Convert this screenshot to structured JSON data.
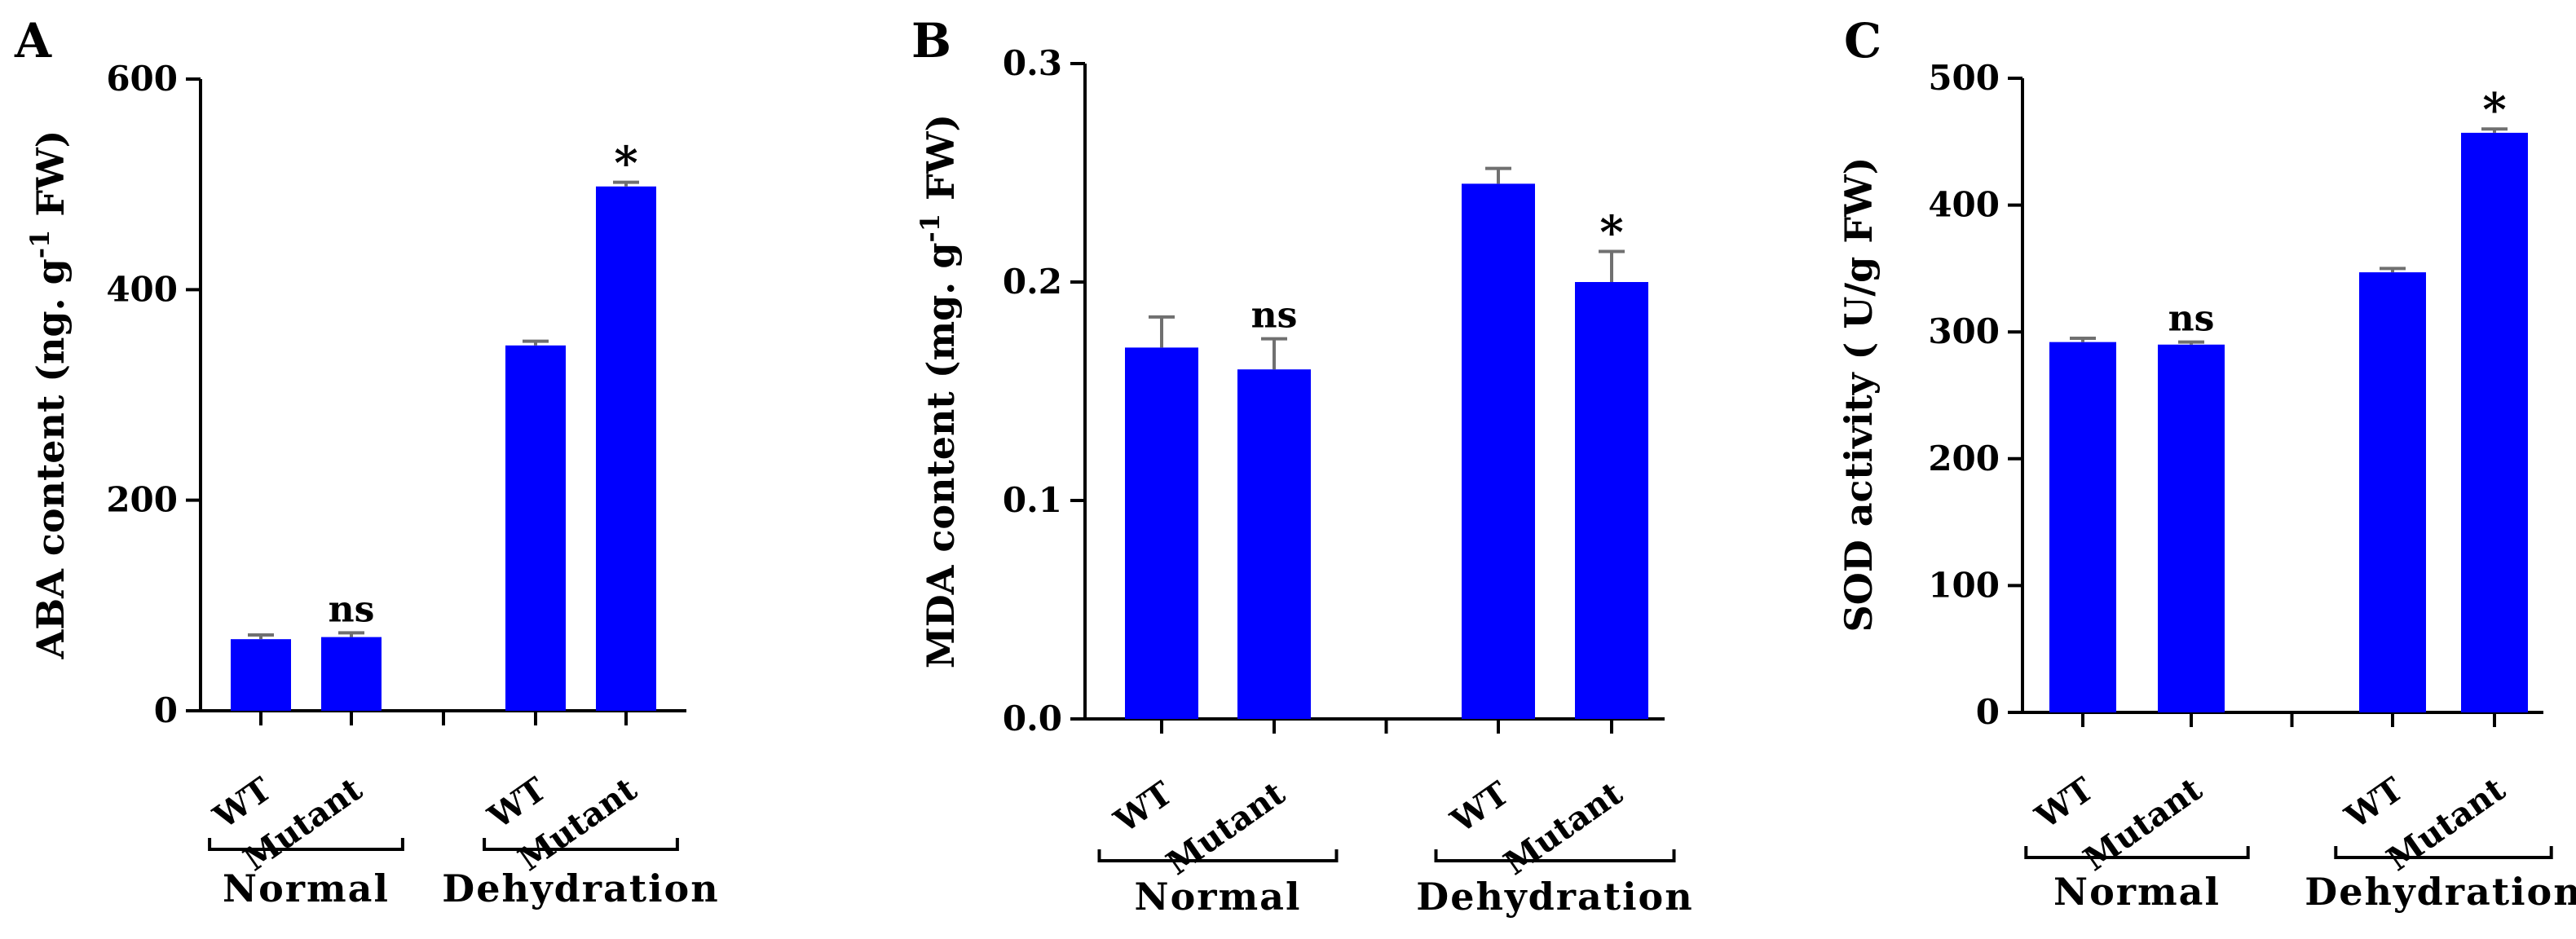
{
  "chart_data": [
    {
      "panel": "A",
      "type": "bar",
      "ylabel_main": "ABA content (ng. g",
      "ylabel_sup": "-1",
      "ylabel_end": " FW)",
      "ylim": [
        0,
        600
      ],
      "yticks": [
        "0",
        "200",
        "400",
        "600"
      ],
      "ytick_values": [
        0,
        200,
        400,
        600
      ],
      "categories": [
        "WT",
        "Mutant",
        "WT",
        "Mutant"
      ],
      "groups": [
        {
          "label": "Normal",
          "bars": [
            0,
            1
          ]
        },
        {
          "label": "Dehydration",
          "bars": [
            2,
            3
          ]
        }
      ],
      "values": [
        68,
        70,
        347,
        498
      ],
      "errors": [
        4,
        4,
        4,
        4
      ],
      "annotations": [
        "",
        "ns",
        "",
        "*"
      ],
      "bar_color": "#0000ff"
    },
    {
      "panel": "B",
      "type": "bar",
      "ylabel_main": "MDA content (mg. g",
      "ylabel_sup": "-1",
      "ylabel_end": " FW)",
      "ylim": [
        0,
        0.3
      ],
      "yticks": [
        "0.0",
        "0.1",
        "0.2",
        "0.3"
      ],
      "ytick_values": [
        0,
        0.1,
        0.2,
        0.3
      ],
      "categories": [
        "WT",
        "Mutant",
        "WT",
        "Mutant"
      ],
      "groups": [
        {
          "label": "Normal",
          "bars": [
            0,
            1
          ]
        },
        {
          "label": "Dehydration",
          "bars": [
            2,
            3
          ]
        }
      ],
      "values": [
        0.17,
        0.16,
        0.245,
        0.2
      ],
      "errors": [
        0.014,
        0.014,
        0.007,
        0.014
      ],
      "annotations": [
        "",
        "ns",
        "",
        "*"
      ],
      "bar_color": "#0000ff"
    },
    {
      "panel": "C",
      "type": "bar",
      "ylabel_main": "SOD activity ( U/g FW)",
      "ylabel_sup": "",
      "ylabel_end": "",
      "ylim": [
        0,
        500
      ],
      "yticks": [
        "0",
        "100",
        "200",
        "300",
        "400",
        "500"
      ],
      "ytick_values": [
        0,
        100,
        200,
        300,
        400,
        500
      ],
      "categories": [
        "WT",
        "Mutant",
        "WT",
        "Mutant"
      ],
      "groups": [
        {
          "label": "Normal",
          "bars": [
            0,
            1
          ]
        },
        {
          "label": "Dehydration",
          "bars": [
            2,
            3
          ]
        }
      ],
      "values": [
        292,
        290,
        347,
        457
      ],
      "errors": [
        3,
        2,
        3,
        3
      ],
      "annotations": [
        "",
        "ns",
        "",
        "*"
      ],
      "bar_color": "#0000ff"
    }
  ]
}
